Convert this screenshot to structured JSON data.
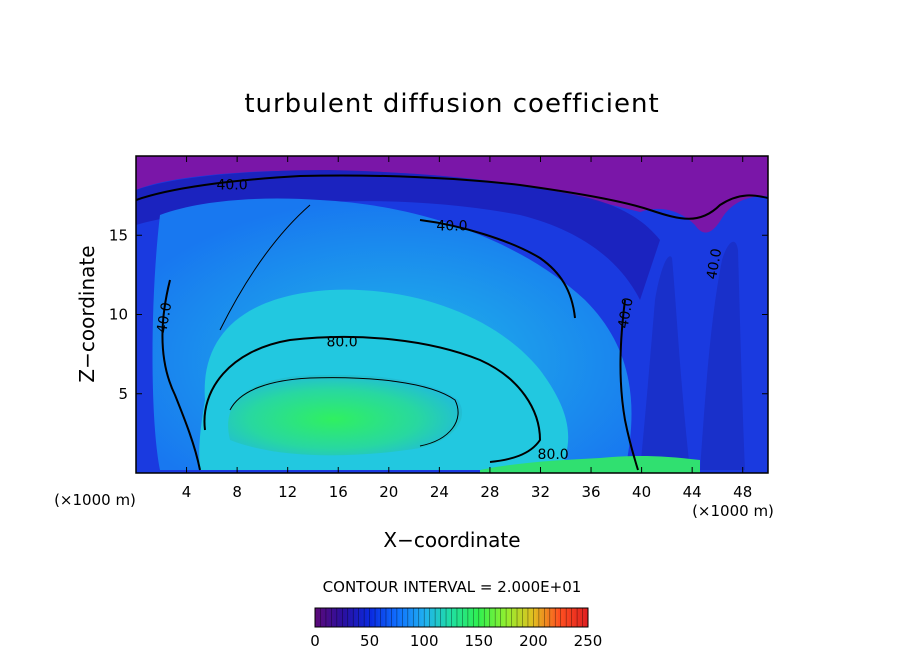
{
  "chart_data": {
    "type": "heatmap",
    "title": "turbulent diffusion coefficient",
    "xlabel": "X−coordinate",
    "ylabel": "Z−coordinate",
    "x_unit_left": "(×1000 m)",
    "x_unit_right": "(×1000 m)",
    "xlim": [
      0,
      50
    ],
    "ylim": [
      0,
      20
    ],
    "x_ticks": [
      4,
      8,
      12,
      16,
      20,
      24,
      28,
      32,
      36,
      40,
      44,
      48
    ],
    "y_ticks": [
      5,
      10,
      15
    ],
    "contour_interval_text": "CONTOUR INTERVAL = 2.000E+01",
    "contour_labels": [
      {
        "text": "40.0",
        "x": 7.6,
        "z": 18.2
      },
      {
        "text": "40.0",
        "x": 25.0,
        "z": 15.6
      },
      {
        "text": "40.0",
        "x": 2.2,
        "z": 9.8
      },
      {
        "text": "40.0",
        "x": 38.7,
        "z": 10.1
      },
      {
        "text": "40.0",
        "x": 45.7,
        "z": 13.2
      },
      {
        "text": "80.0",
        "x": 16.3,
        "z": 8.3
      },
      {
        "text": "80.0",
        "x": 33.0,
        "z": 1.2
      }
    ],
    "colorbar": {
      "min": 0,
      "max": 250,
      "tick_labels": [
        "0",
        "50",
        "100",
        "150",
        "200",
        "250"
      ],
      "colors": [
        "#5a0a7a",
        "#2a10a0",
        "#0a2ae0",
        "#1070ff",
        "#20b0f0",
        "#20e0a0",
        "#30f050",
        "#90f030",
        "#e0c020",
        "#ff5020",
        "#e02020"
      ]
    },
    "field_colors": {
      "top": "#7a16a8",
      "dark": "#1a2ad8",
      "mid": "#1888f0",
      "light": "#28c8e8",
      "core": "#22e08a",
      "max": "#30f050"
    }
  }
}
